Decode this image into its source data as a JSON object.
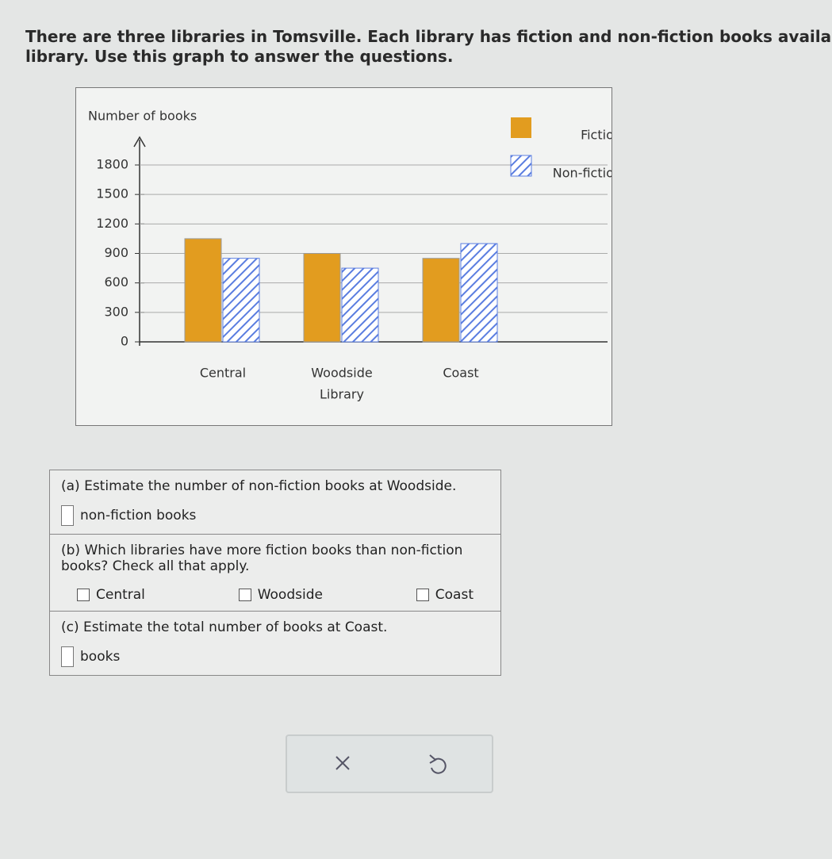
{
  "intro": [
    "There are three libraries in Tomsville. Each library has fiction and non-fiction books availabl",
    "library. Use this graph to answer the questions."
  ],
  "chart_data": {
    "type": "bar",
    "y_label": "Number of books",
    "x_label": "Library",
    "categories": [
      "Central",
      "Woodside",
      "Coast"
    ],
    "series": [
      {
        "name": "Fiction",
        "color": "#e29c1f",
        "values": [
          1050,
          900,
          850
        ]
      },
      {
        "name": "Non-fiction",
        "color": "#5a7de0",
        "pattern": "hatch",
        "values": [
          850,
          750,
          1000
        ]
      }
    ],
    "ylim": [
      0,
      1800
    ],
    "yticks": [
      0,
      300,
      600,
      900,
      1200,
      1500,
      1800
    ],
    "grid": true,
    "legend": "top-right"
  },
  "questions": [
    {
      "prompt": "(a) Estimate the number of non-fiction books at Woodside.",
      "answer_suffix": "non-fiction books"
    },
    {
      "prompt": "(b) Which libraries have more fiction books than non-fiction books? Check all that apply.",
      "options": [
        "Central",
        "Woodside",
        "Coast"
      ]
    },
    {
      "prompt": "(c) Estimate the total number of books at Coast.",
      "answer_suffix": "books"
    }
  ]
}
